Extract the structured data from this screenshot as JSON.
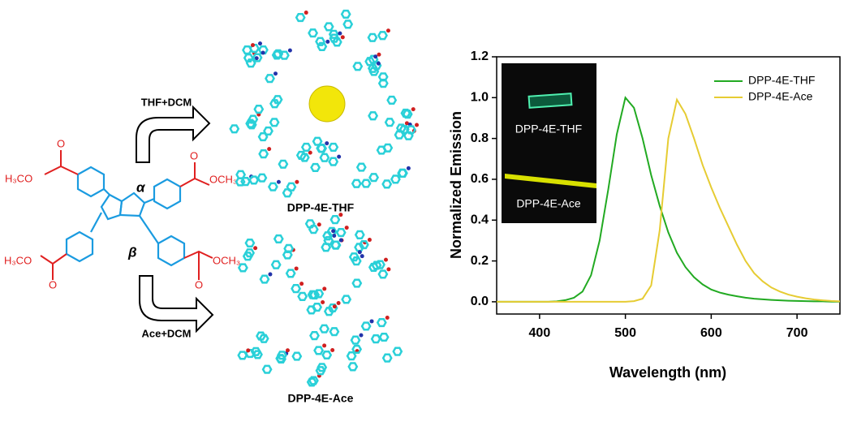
{
  "scheme": {
    "top_arrow": "THF+DCM",
    "bottom_arrow": "Ace+DCM",
    "top_crystal": "DPP-4E-THF",
    "bottom_crystal": "DPP-4E-Ace",
    "alpha": "α",
    "beta": "β",
    "groups": [
      "H₃CO",
      "O",
      "H₃CO",
      "O",
      "O",
      "OCH₃",
      "O",
      "OCH₃"
    ]
  },
  "chart_data": {
    "type": "line",
    "xlabel": "Wavelength (nm)",
    "ylabel": "Normalized Emission",
    "x": [
      350,
      360,
      370,
      380,
      390,
      400,
      410,
      420,
      430,
      440,
      450,
      460,
      470,
      480,
      490,
      500,
      510,
      520,
      530,
      540,
      550,
      560,
      570,
      580,
      590,
      600,
      610,
      620,
      630,
      640,
      650,
      660,
      670,
      680,
      690,
      700,
      710,
      720,
      730,
      740,
      750
    ],
    "series": [
      {
        "name": "DPP-4E-THF",
        "color": "#22aa22",
        "values": [
          0,
          0,
          0,
          0,
          0,
          0,
          0,
          0.002,
          0.008,
          0.02,
          0.05,
          0.13,
          0.3,
          0.55,
          0.82,
          1.0,
          0.95,
          0.8,
          0.62,
          0.47,
          0.34,
          0.24,
          0.17,
          0.12,
          0.085,
          0.06,
          0.045,
          0.035,
          0.027,
          0.02,
          0.015,
          0.012,
          0.009,
          0.007,
          0.005,
          0.004,
          0.003,
          0.002,
          0.002,
          0.001,
          0.001
        ]
      },
      {
        "name": "DPP-4E-Ace",
        "color": "#e6cc33",
        "values": [
          0,
          0,
          0,
          0,
          0,
          0,
          0,
          0,
          0,
          0,
          0,
          0,
          0,
          0,
          0,
          0,
          0.003,
          0.015,
          0.08,
          0.35,
          0.8,
          0.99,
          0.92,
          0.8,
          0.67,
          0.56,
          0.46,
          0.37,
          0.28,
          0.2,
          0.14,
          0.1,
          0.07,
          0.05,
          0.035,
          0.025,
          0.017,
          0.011,
          0.007,
          0.004,
          0.002
        ]
      }
    ],
    "xlim": [
      350,
      750
    ],
    "xticks": [
      400,
      500,
      600,
      700
    ],
    "ylim": [
      -0.06,
      1.2
    ],
    "yticks": [
      {
        "value": 0,
        "label": "0.0"
      },
      0.2,
      0.4,
      0.6,
      0.8,
      {
        "value": 1,
        "label": "1.0"
      },
      1.2
    ],
    "legend": "upper right",
    "inset_labels": [
      "DPP-4E-THF",
      "DPP-4E-Ace"
    ]
  }
}
